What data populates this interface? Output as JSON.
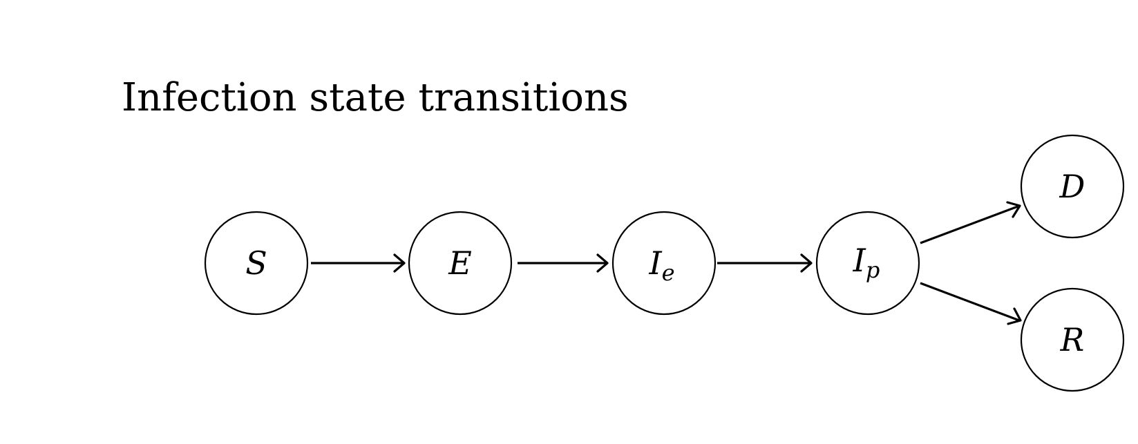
{
  "title": "Infection state transitions",
  "nodes": [
    {
      "id": "S",
      "base": "S",
      "sub": ""
    },
    {
      "id": "E",
      "base": "E",
      "sub": ""
    },
    {
      "id": "Ie",
      "base": "I",
      "sub": "e"
    },
    {
      "id": "Ip",
      "base": "I",
      "sub": "p"
    },
    {
      "id": "D",
      "base": "D",
      "sub": ""
    },
    {
      "id": "R",
      "base": "R",
      "sub": ""
    }
  ],
  "edges": [
    {
      "from": "S",
      "to": "E"
    },
    {
      "from": "E",
      "to": "Ie"
    },
    {
      "from": "Ie",
      "to": "Ip"
    },
    {
      "from": "Ip",
      "to": "D"
    },
    {
      "from": "Ip",
      "to": "R"
    }
  ]
}
